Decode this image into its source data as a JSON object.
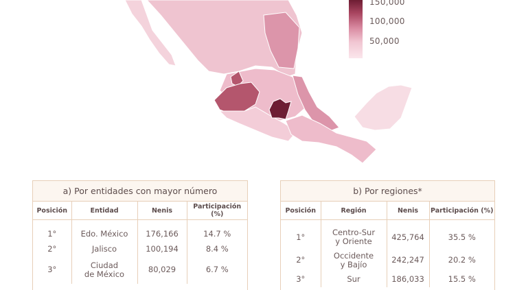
{
  "legend": {
    "labels": [
      "150,000",
      "100,000",
      "50,000"
    ],
    "colors": [
      "#6d1d33",
      "#a8445f",
      "#d98aa1",
      "#f1c6d2",
      "#fbe6ec"
    ]
  },
  "map": {
    "base_color": "#f2cfd9",
    "highlight_colors": {
      "edo_mexico": "#6d1d33",
      "jalisco": "#b4566d",
      "mid": "#d98aa1",
      "light": "#f7dde4"
    }
  },
  "table_a": {
    "title": "a)  Por entidades con mayor número",
    "headers": [
      "Posición",
      "Entidad",
      "Nenis",
      "Participación (%)"
    ],
    "rows": [
      [
        "1°",
        "Edo. México",
        "176,166",
        "14.7 %"
      ],
      [
        "2°",
        "Jalisco",
        "100,194",
        "8.4 %"
      ],
      [
        "3°",
        "Ciudad\nde México",
        "80,029",
        "6.7 %"
      ]
    ]
  },
  "table_b": {
    "title": "b)  Por regiones*",
    "headers": [
      "Posición",
      "Región",
      "Nenis",
      "Participación (%)"
    ],
    "rows": [
      [
        "1°",
        "Centro-Sur\ny Oriente",
        "425,764",
        "35.5 %"
      ],
      [
        "2°",
        "Occidente\ny Bajío",
        "242,247",
        "20.2 %"
      ],
      [
        "3°",
        "Sur",
        "186,033",
        "15.5 %"
      ]
    ]
  }
}
